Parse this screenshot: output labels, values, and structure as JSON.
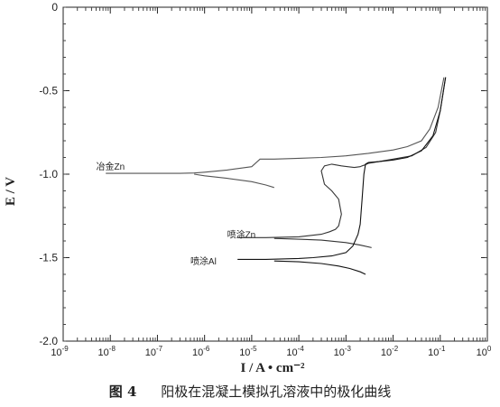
{
  "caption": {
    "number": "图 4",
    "text": "阳极在混凝土模拟孔溶液中的极化曲线"
  },
  "chart_data": {
    "type": "line",
    "xscale": "log",
    "xlim": [
      1e-09,
      1
    ],
    "ylim": [
      -2.0,
      0
    ],
    "ylabel": "E / V",
    "xlabel": "I / A • cm⁻²",
    "y_ticks": [
      "0",
      "-0.5",
      "-1.0",
      "-1.5",
      "-2.0"
    ],
    "x_ticks": [
      {
        "base": "10",
        "exp": "-9"
      },
      {
        "base": "10",
        "exp": "-8"
      },
      {
        "base": "10",
        "exp": "-7"
      },
      {
        "base": "10",
        "exp": "-6"
      },
      {
        "base": "10",
        "exp": "-5"
      },
      {
        "base": "10",
        "exp": "-4"
      },
      {
        "base": "10",
        "exp": "-3"
      },
      {
        "base": "10",
        "exp": "-2"
      },
      {
        "base": "10",
        "exp": "-1"
      },
      {
        "base": "10",
        "exp": "0"
      }
    ],
    "annotations": [
      {
        "text": "冶金Zn",
        "x": 5e-09,
        "y": -0.95
      },
      {
        "text": "喷涂Zn",
        "x": 3e-06,
        "y": -1.36
      },
      {
        "text": "喷涂Al",
        "x": 5e-07,
        "y": -1.52
      }
    ],
    "series": [
      {
        "color": "#555555",
        "branches": [
          {
            "x": [
              8e-09,
              3e-08,
              1e-07,
              3e-07,
              6e-07,
              1e-06,
              3e-06,
              1e-05,
              1.5e-05,
              3e-05,
              0.0001,
              0.0003,
              0.001,
              0.003,
              0.01,
              0.02,
              0.04,
              0.06,
              0.09,
              0.12
            ],
            "y": [
              -0.995,
              -0.995,
              -0.995,
              -0.995,
              -0.993,
              -0.988,
              -0.975,
              -0.955,
              -0.91,
              -0.91,
              -0.905,
              -0.9,
              -0.89,
              -0.875,
              -0.855,
              -0.835,
              -0.8,
              -0.73,
              -0.6,
              -0.42
            ]
          },
          {
            "x": [
              6e-07,
              1e-06,
              3e-06,
              1e-05,
              2e-05,
              3e-05
            ],
            "y": [
              -1.0,
              -1.01,
              -1.025,
              -1.045,
              -1.065,
              -1.08
            ]
          }
        ]
      },
      {
        "color": "#333333",
        "branches": [
          {
            "x": [
              5e-06,
              2e-05,
              0.0001,
              0.0003,
              0.00045,
              0.0006,
              0.0007,
              0.0008,
              0.0007,
              0.0005,
              0.00035,
              0.0003,
              0.00035,
              0.0005,
              0.0008,
              0.0015,
              0.002,
              0.0022,
              0.0025,
              0.003,
              0.005,
              0.01,
              0.025,
              0.05,
              0.08,
              0.1,
              0.13
            ],
            "y": [
              -1.38,
              -1.38,
              -1.375,
              -1.36,
              -1.345,
              -1.33,
              -1.31,
              -1.24,
              -1.15,
              -1.1,
              -1.06,
              -0.98,
              -0.95,
              -0.94,
              -0.95,
              -0.96,
              -0.955,
              -0.95,
              -0.945,
              -0.935,
              -0.925,
              -0.91,
              -0.89,
              -0.84,
              -0.75,
              -0.62,
              -0.42
            ]
          },
          {
            "x": [
              3e-05,
              0.0001,
              0.0003,
              0.001,
              0.002,
              0.0035
            ],
            "y": [
              -1.385,
              -1.39,
              -1.395,
              -1.41,
              -1.425,
              -1.44
            ]
          }
        ]
      },
      {
        "color": "#111111",
        "branches": [
          {
            "x": [
              5e-06,
              2e-05,
              0.0001,
              0.0002,
              0.0005,
              0.001,
              0.0014,
              0.0018,
              0.002,
              0.0022,
              0.0024,
              0.0026,
              0.003,
              0.005,
              0.01,
              0.02,
              0.04,
              0.07,
              0.1,
              0.13
            ],
            "y": [
              -1.51,
              -1.51,
              -1.505,
              -1.5,
              -1.49,
              -1.47,
              -1.43,
              -1.36,
              -1.3,
              -1.15,
              -1.0,
              -0.94,
              -0.93,
              -0.925,
              -0.915,
              -0.9,
              -0.86,
              -0.77,
              -0.62,
              -0.42
            ]
          },
          {
            "x": [
              3e-05,
              0.0001,
              0.0003,
              0.0007,
              0.0012,
              0.002,
              0.0026
            ],
            "y": [
              -1.52,
              -1.525,
              -1.535,
              -1.55,
              -1.565,
              -1.585,
              -1.6
            ]
          }
        ]
      }
    ]
  }
}
